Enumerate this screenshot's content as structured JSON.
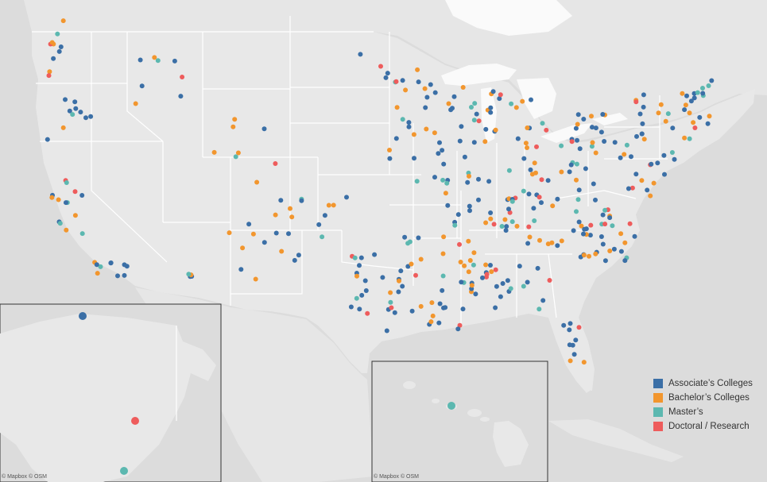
{
  "attribution": {
    "main": "© Mapbox © OSM",
    "hawaii": "© Mapbox © OSM"
  },
  "colors": {
    "land": "#e8e8e8",
    "water": "#dcdcdc",
    "border": "#ffffff",
    "lake": "#fafafa"
  },
  "legend": {
    "items": [
      {
        "label": "Associate’s Colleges",
        "color": "#3b6fa6"
      },
      {
        "label": "Bachelor’s Colleges",
        "color": "#f2962e"
      },
      {
        "label": "Master’s",
        "color": "#5cb8b0"
      },
      {
        "label": "Doctoral / Research",
        "color": "#ee5c5c"
      }
    ]
  }
}
